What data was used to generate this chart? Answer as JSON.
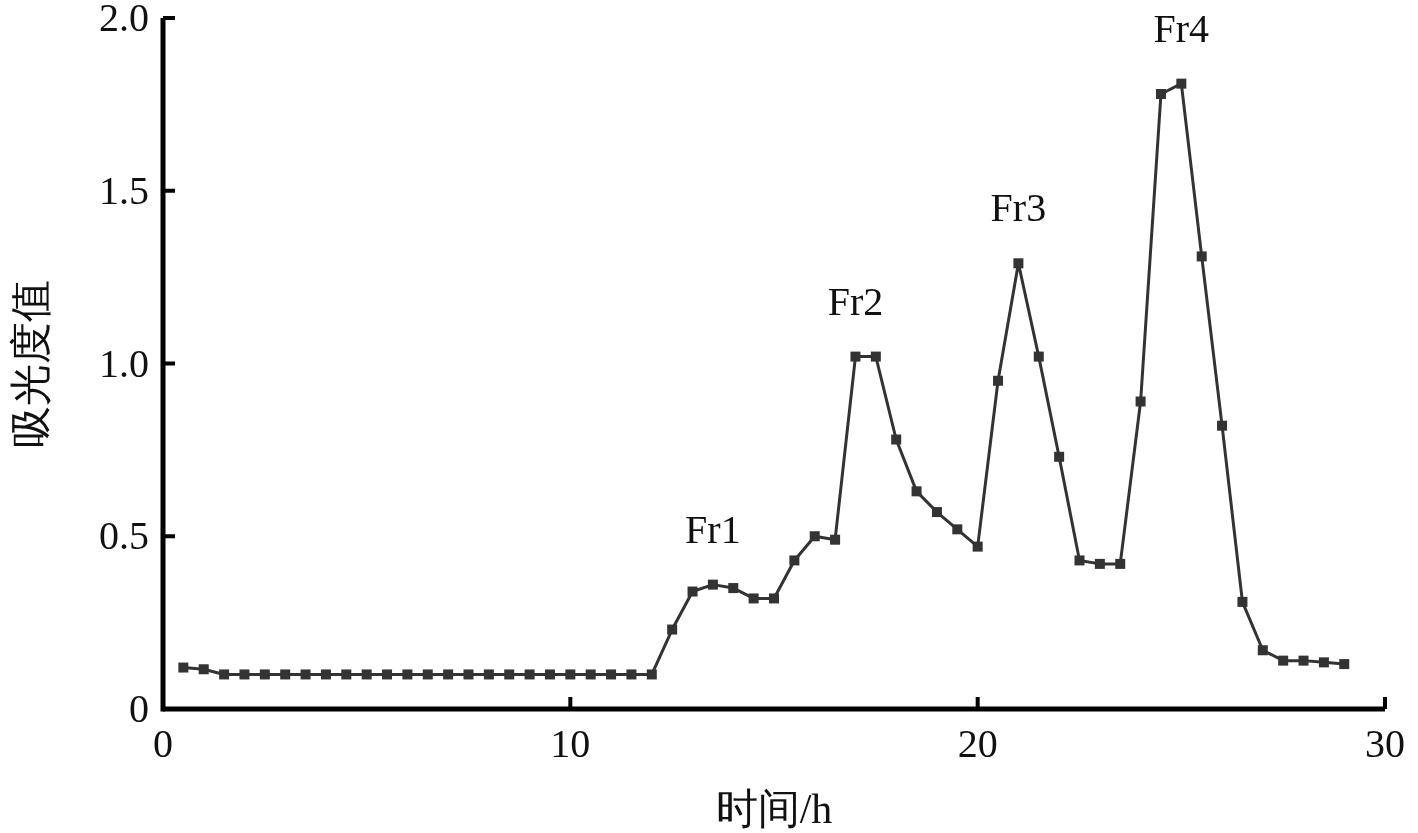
{
  "chart_data": {
    "type": "line",
    "xlabel": "时间/h",
    "ylabel": "吸光度值",
    "x": [
      0.5,
      1,
      1.5,
      2,
      2.5,
      3,
      3.5,
      4,
      4.5,
      5,
      5.5,
      6,
      6.5,
      7,
      7.5,
      8,
      8.5,
      9,
      9.5,
      10,
      10.5,
      11,
      11.5,
      12,
      12.5,
      13,
      13.5,
      14,
      14.5,
      15,
      15.5,
      16,
      16.5,
      17,
      17.5,
      18,
      18.5,
      19,
      19.5,
      20,
      20.5,
      21,
      21.5,
      22,
      22.5,
      23,
      23.5,
      24,
      24.5,
      25,
      25.5,
      26,
      26.5,
      27,
      27.5,
      28,
      28.5,
      29
    ],
    "series": [
      {
        "color": "#333333",
        "values": [
          0.12,
          0.115,
          0.1,
          0.1,
          0.1,
          0.1,
          0.1,
          0.1,
          0.1,
          0.1,
          0.1,
          0.1,
          0.1,
          0.1,
          0.1,
          0.1,
          0.1,
          0.1,
          0.1,
          0.1,
          0.1,
          0.1,
          0.1,
          0.1,
          0.23,
          0.34,
          0.36,
          0.35,
          0.32,
          0.32,
          0.43,
          0.5,
          0.49,
          1.02,
          1.02,
          0.78,
          0.63,
          0.57,
          0.52,
          0.47,
          0.95,
          1.29,
          1.02,
          0.73,
          0.43,
          0.42,
          0.42,
          0.89,
          1.78,
          1.81,
          1.31,
          0.82,
          0.31,
          0.17,
          0.14,
          0.14,
          0.135,
          0.13
        ]
      }
    ],
    "xlim": [
      0,
      30
    ],
    "ylim": [
      0,
      2
    ],
    "xticks": [
      0,
      10,
      20,
      30
    ],
    "yticks": [
      0,
      0.5,
      {
        "value": 1,
        "label": "1.0"
      },
      1.5,
      {
        "value": 2,
        "label": "2.0"
      }
    ],
    "marker": "square",
    "line_style": "solid",
    "grid": false,
    "annotations": [
      {
        "text": "Fr1",
        "x": 13.5,
        "y": 0.36
      },
      {
        "text": "Fr2",
        "x": 17,
        "y": 1.02
      },
      {
        "text": "Fr3",
        "x": 21,
        "y": 1.29
      },
      {
        "text": "Fr4",
        "x": 25,
        "y": 1.81
      }
    ]
  }
}
